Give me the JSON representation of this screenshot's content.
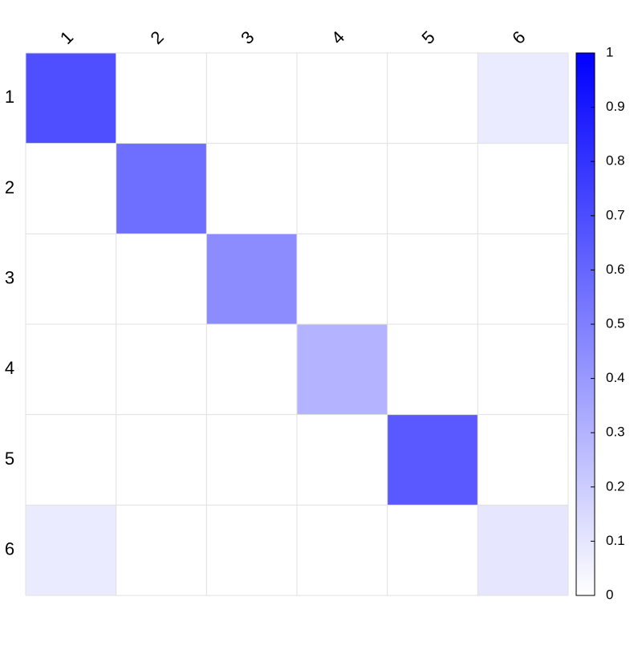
{
  "chart_data": {
    "type": "heatmap",
    "title": "",
    "x_categories": [
      "1",
      "2",
      "3",
      "4",
      "5",
      "6"
    ],
    "y_categories": [
      "1",
      "2",
      "3",
      "4",
      "5",
      "6"
    ],
    "values": [
      [
        0.69,
        0.0,
        0.0,
        0.0,
        0.0,
        0.08
      ],
      [
        0.0,
        0.57,
        0.0,
        0.0,
        0.0,
        0.0
      ],
      [
        0.0,
        0.0,
        0.45,
        0.0,
        0.0,
        0.0
      ],
      [
        0.0,
        0.0,
        0.0,
        0.3,
        0.0,
        0.0
      ],
      [
        0.0,
        0.0,
        0.0,
        0.0,
        0.65,
        0.0
      ],
      [
        0.08,
        0.0,
        0.0,
        0.0,
        0.0,
        0.1
      ]
    ],
    "colorbar": {
      "min": 0,
      "max": 1,
      "ticks": [
        "0",
        "0.1",
        "0.2",
        "0.3",
        "0.4",
        "0.5",
        "0.6",
        "0.7",
        "0.8",
        "0.9",
        "1"
      ],
      "color_low": "#ffffff",
      "color_high": "#0000ff"
    },
    "grid": true,
    "grid_color": "#e0e0e0",
    "x_axis_position": "top",
    "legend_position": "right"
  }
}
